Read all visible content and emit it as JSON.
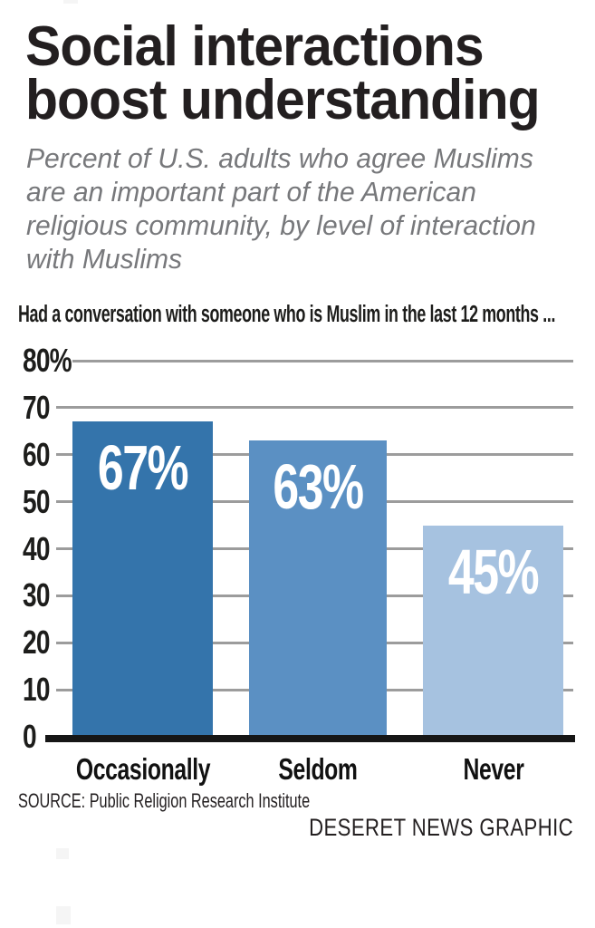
{
  "title_lines": [
    "Social interactions",
    "boost understanding"
  ],
  "subtitle_lines": [
    "Percent of U.S. adults who agree Muslims",
    "are an important part of the American",
    "religious community, by level of interaction",
    "with Muslims"
  ],
  "chart_heading": "Had a conversation with someone who is Muslim in the last 12 months ...",
  "chart_data": {
    "type": "bar",
    "title": "Social interactions boost understanding",
    "subtitle": "Percent of U.S. adults who agree Muslims are an important part of the American religious community, by level of interaction with Muslims",
    "categories": [
      "Occasionally",
      "Seldom",
      "Never"
    ],
    "values": [
      67,
      63,
      45
    ],
    "value_labels": [
      "67%",
      "63%",
      "45%"
    ],
    "bar_colors": [
      "#3474ab",
      "#5b90c3",
      "#a6c2e0"
    ],
    "xlabel": "",
    "ylabel": "",
    "ylim": [
      0,
      80
    ],
    "yticks": [
      80,
      70,
      60,
      50,
      40,
      30,
      20,
      10,
      0
    ],
    "ytick_labels": [
      "80%",
      "70",
      "60",
      "50",
      "40",
      "30",
      "20",
      "10",
      "0"
    ],
    "grid": "horizontal",
    "legend": "none"
  },
  "source": "SOURCE: Public Religion Research Institute",
  "credit": "DESERET NEWS GRAPHIC",
  "colors": {
    "title_text": "#231f20",
    "subtitle_text": "#77787b",
    "gridline": "#9c9c9c",
    "axis_baseline": "#161616",
    "value_label_text": "#ffffff"
  }
}
